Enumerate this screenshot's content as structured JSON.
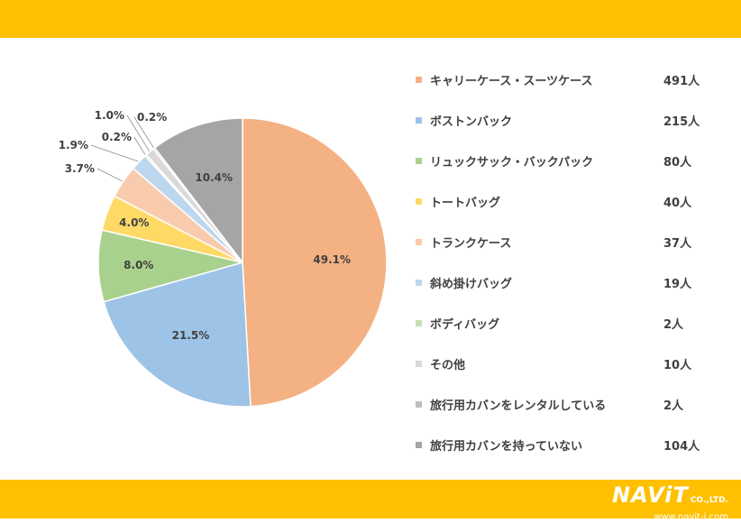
{
  "chart_data": {
    "type": "pie",
    "start_angle_deg": 0,
    "direction": "clockwise",
    "slices": [
      {
        "label": "キャリーケース・スーツケース",
        "count": "491人",
        "percent": 49.1,
        "percent_label": "49.1%",
        "color": "#F4B183"
      },
      {
        "label": "ボストンバック",
        "count": "215人",
        "percent": 21.5,
        "percent_label": "21.5%",
        "color": "#9DC3E6"
      },
      {
        "label": "リュックサック・バックパック",
        "count": "80人",
        "percent": 8.0,
        "percent_label": "8.0%",
        "color": "#A9D18E"
      },
      {
        "label": "トートバッグ",
        "count": "40人",
        "percent": 4.0,
        "percent_label": "4.0%",
        "color": "#FFD966"
      },
      {
        "label": "トランクケース",
        "count": "37人",
        "percent": 3.7,
        "percent_label": "3.7%",
        "color": "#F8CBAD"
      },
      {
        "label": "斜め掛けバッグ",
        "count": "19人",
        "percent": 1.9,
        "percent_label": "1.9%",
        "color": "#BDD7EE"
      },
      {
        "label": "ボディバッグ",
        "count": "2人",
        "percent": 0.2,
        "percent_label": "0.2%",
        "color": "#C5E0B4"
      },
      {
        "label": "その他",
        "count": "10人",
        "percent": 1.0,
        "percent_label": "1.0%",
        "color": "#D9D9D9"
      },
      {
        "label": "旅行用カバンをレンタルしている",
        "count": "2人",
        "percent": 0.2,
        "percent_label": "0.2%",
        "color": "#BFBFBF"
      },
      {
        "label": "旅行用カバンを持っていない",
        "count": "104人",
        "percent": 10.4,
        "percent_label": "10.4%",
        "color": "#A5A5A5"
      }
    ],
    "legend_position": "right"
  },
  "theme": {
    "band_color": "#FFC000",
    "text_color": "#404040"
  },
  "brand": {
    "name": "NAViT",
    "suffix": "CO.,LTD.",
    "url": "www.navit-j.com"
  }
}
